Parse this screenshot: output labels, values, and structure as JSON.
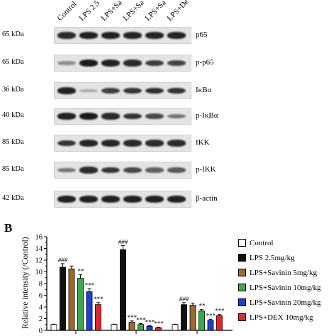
{
  "panel_A": {
    "lanes": [
      "Control",
      "LPS 2.5",
      "LPS+Sa",
      "LPS+Sa",
      "LPS+Sa",
      "LPS+De"
    ],
    "rows": [
      {
        "kda": "65 kDa",
        "protein": "p65",
        "intensity": [
          0.85,
          0.9,
          0.9,
          0.88,
          0.88,
          0.88
        ]
      },
      {
        "kda": "65 kDa",
        "protein": "p-p65",
        "intensity": [
          0.3,
          0.95,
          0.9,
          0.85,
          0.75,
          0.72
        ]
      },
      {
        "kda": "36 kDa",
        "protein": "IκBα",
        "intensity": [
          0.9,
          0.15,
          0.75,
          0.8,
          0.82,
          0.8
        ]
      },
      {
        "kda": "40 kDa",
        "protein": "p-IκBα",
        "intensity": [
          0.9,
          0.95,
          0.85,
          0.8,
          0.7,
          0.45
        ]
      },
      {
        "kda": "85 kDa",
        "protein": "IKK",
        "intensity": [
          0.8,
          0.88,
          0.88,
          0.86,
          0.85,
          0.85
        ]
      },
      {
        "kda": "85 kDa",
        "protein": "p-IKK",
        "intensity": [
          0.45,
          0.85,
          0.8,
          0.7,
          0.55,
          0.6
        ]
      },
      {
        "kda": "42 kDa",
        "protein": "β-actin",
        "intensity": [
          0.9,
          0.9,
          0.9,
          0.9,
          0.9,
          0.9
        ]
      }
    ]
  },
  "panel_B": {
    "panel_label": "B",
    "chart_data": {
      "type": "bar",
      "ylabel": "Relative intensity (/Control)",
      "ylim": [
        0,
        16
      ],
      "yticks": [
        0,
        1,
        2,
        3,
        4,
        5,
        6,
        7,
        8,
        9,
        10,
        11,
        12,
        13,
        14,
        15,
        16
      ],
      "ytick_labels": [
        "0",
        "",
        "2",
        "",
        "4",
        "",
        "6",
        "",
        "8",
        "",
        "10",
        "",
        "12",
        "",
        "14",
        "",
        "16"
      ],
      "categories": [
        "",
        "",
        ""
      ],
      "legend_position": "right",
      "series": [
        {
          "name": "Control",
          "color": "#ffffff",
          "values": [
            1.0,
            1.0,
            1.0
          ],
          "errors": [
            0.05,
            0.05,
            0.05
          ],
          "labels": [
            "",
            "",
            ""
          ]
        },
        {
          "name": "LPS 2.5mg/kg",
          "color": "#111111",
          "values": [
            10.8,
            13.8,
            4.4
          ],
          "errors": [
            0.6,
            0.7,
            0.35
          ],
          "labels": [
            "###",
            "###",
            "###"
          ]
        },
        {
          "name": "LPS+Savinin 5mg/kg",
          "color": "#9c6a2f",
          "values": [
            10.5,
            1.4,
            4.3
          ],
          "errors": [
            0.5,
            0.2,
            0.35
          ],
          "labels": [
            "",
            "***",
            ""
          ]
        },
        {
          "name": "LPS+Savinin 10mg/kg",
          "color": "#3aa94b",
          "values": [
            8.9,
            1.0,
            3.3
          ],
          "errors": [
            0.6,
            0.15,
            0.25
          ],
          "labels": [
            "**",
            "***",
            "**"
          ]
        },
        {
          "name": "LPS+Savinin 20mg/kg",
          "color": "#1f3fd6",
          "values": [
            6.6,
            0.7,
            1.7
          ],
          "errors": [
            0.5,
            0.1,
            0.2
          ],
          "labels": [
            "***",
            "***",
            "***"
          ]
        },
        {
          "name": "LPS+DEX 10mg/kg",
          "color": "#e3262d",
          "values": [
            4.4,
            0.45,
            2.5
          ],
          "errors": [
            0.35,
            0.1,
            0.2
          ],
          "labels": [
            "***",
            "***",
            "***"
          ]
        }
      ]
    }
  }
}
